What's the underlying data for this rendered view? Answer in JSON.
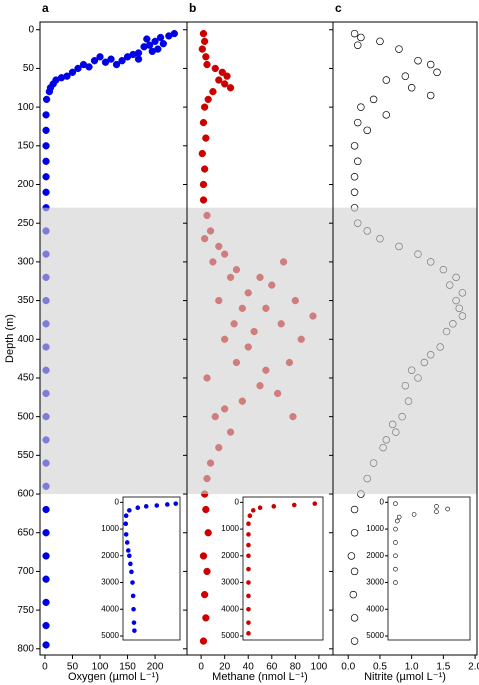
{
  "shaded_depth_range": [
    230,
    600
  ],
  "chart_data": [
    {
      "type": "scatter",
      "panel_label": "a",
      "xlabel": "Oxygen (µmol L⁻¹)",
      "ylabel": "Depth (m)",
      "y_inverted": true,
      "xlim": [
        -9,
        258
      ],
      "xticks": [
        0,
        50,
        100,
        150,
        200
      ],
      "ylim": [
        -10,
        808
      ],
      "yticks": [
        0,
        50,
        100,
        150,
        200,
        250,
        300,
        350,
        400,
        450,
        500,
        550,
        600,
        650,
        700,
        750,
        800
      ],
      "series": [
        {
          "color": "#0000e6",
          "filled": true,
          "x": [
            235,
            225,
            210,
            200,
            190,
            180,
            195,
            170,
            160,
            150,
            140,
            120,
            110,
            100,
            90,
            80,
            70,
            60,
            50,
            40,
            30,
            20,
            15,
            10,
            8,
            215,
            205,
            130,
            185,
            170,
            3,
            2,
            2,
            2,
            2,
            2,
            2,
            2,
            2,
            2,
            2,
            2,
            2,
            2,
            2,
            2,
            2,
            2,
            2,
            2,
            2,
            2,
            2,
            2,
            2,
            2,
            2
          ],
          "y": [
            5,
            8,
            10,
            15,
            20,
            22,
            28,
            30,
            32,
            35,
            40,
            38,
            42,
            35,
            40,
            48,
            45,
            50,
            55,
            60,
            62,
            65,
            70,
            75,
            80,
            18,
            25,
            45,
            12,
            38,
            90,
            110,
            130,
            150,
            170,
            190,
            210,
            230,
            260,
            290,
            320,
            350,
            380,
            410,
            440,
            470,
            500,
            530,
            560,
            590,
            620,
            650,
            680,
            710,
            740,
            770,
            795
          ]
        }
      ],
      "inset": {
        "xlim": [
          -10,
          260
        ],
        "ylim": [
          -200,
          5150
        ],
        "yticks": [
          0,
          1000,
          2000,
          3000,
          4000,
          5000
        ],
        "x": [
          240,
          200,
          150,
          100,
          60,
          20,
          5,
          3,
          5,
          10,
          15,
          20,
          25,
          30,
          35,
          38,
          40,
          42,
          44
        ],
        "y": [
          50,
          80,
          120,
          150,
          200,
          300,
          500,
          800,
          1200,
          1500,
          1800,
          2000,
          2300,
          2600,
          3000,
          3500,
          4000,
          4500,
          4800
        ]
      }
    },
    {
      "type": "scatter",
      "panel_label": "b",
      "xlabel": "Methane (nmol L⁻¹)",
      "y_inverted": true,
      "xlim": [
        -12,
        112
      ],
      "xticks": [
        0,
        20,
        40,
        60,
        80,
        100
      ],
      "ylim": [
        -10,
        808
      ],
      "series": [
        {
          "color": "#cc0000",
          "filled": true,
          "x": [
            2,
            3,
            1,
            4,
            5,
            12,
            18,
            22,
            15,
            20,
            25,
            10,
            6,
            3,
            2,
            4,
            1,
            3,
            2,
            2,
            5,
            8,
            3,
            15,
            20,
            10,
            30,
            25,
            50,
            60,
            40,
            70,
            15,
            35,
            55,
            80,
            95,
            28,
            45,
            68,
            20,
            40,
            85,
            30,
            55,
            75,
            5,
            50,
            65,
            35,
            20,
            78,
            12,
            25,
            15,
            8,
            5,
            3,
            4,
            6,
            2,
            5,
            3,
            4,
            2
          ],
          "y": [
            5,
            15,
            25,
            35,
            45,
            50,
            55,
            60,
            65,
            70,
            75,
            80,
            90,
            100,
            120,
            140,
            160,
            180,
            200,
            220,
            240,
            260,
            270,
            280,
            290,
            300,
            310,
            320,
            320,
            330,
            340,
            300,
            350,
            360,
            360,
            350,
            370,
            380,
            390,
            380,
            400,
            410,
            400,
            430,
            440,
            430,
            450,
            460,
            470,
            480,
            490,
            500,
            500,
            520,
            540,
            560,
            580,
            600,
            620,
            650,
            680,
            700,
            730,
            760,
            790
          ]
        }
      ],
      "inset": {
        "xlim": [
          -5,
          112
        ],
        "ylim": [
          -200,
          5150
        ],
        "yticks": [
          0,
          1000,
          2000,
          3000,
          4000,
          5000
        ],
        "x": [
          100,
          70,
          40,
          20,
          10,
          5,
          3,
          3,
          3,
          3,
          3,
          3,
          3,
          3,
          3,
          3
        ],
        "y": [
          50,
          100,
          150,
          200,
          300,
          500,
          800,
          1200,
          1600,
          2000,
          2500,
          3000,
          3500,
          4000,
          4500,
          4900
        ]
      }
    },
    {
      "type": "scatter",
      "panel_label": "c",
      "xlabel": "Nitrite (µmol L⁻¹)",
      "y_inverted": true,
      "xlim": [
        -0.24,
        2.03
      ],
      "xticks": [
        {
          "value": 0,
          "label": "0.0"
        },
        {
          "value": 0.5,
          "label": "0.5"
        },
        {
          "value": 1,
          "label": "1.0"
        },
        {
          "value": 1.5,
          "label": "1.5"
        },
        {
          "value": 2,
          "label": "2.0"
        }
      ],
      "ylim": [
        -10,
        808
      ],
      "series": [
        {
          "color": "#000000",
          "filled": false,
          "x": [
            0.1,
            0.2,
            0.15,
            0.5,
            0.8,
            1.1,
            1.3,
            1.4,
            0.9,
            0.6,
            1.0,
            1.3,
            0.4,
            0.2,
            0.6,
            0.15,
            0.3,
            0.1,
            0.15,
            0.1,
            0.1,
            0.1,
            0.15,
            0.3,
            0.5,
            0.8,
            1.1,
            1.3,
            1.5,
            1.7,
            1.6,
            1.8,
            1.7,
            1.75,
            1.8,
            1.65,
            1.55,
            1.45,
            1.3,
            1.2,
            1.0,
            1.1,
            0.9,
            0.95,
            0.85,
            0.7,
            0.75,
            0.6,
            0.55,
            0.4,
            0.3,
            0.2,
            0.1,
            0.1,
            0.05,
            0.1,
            0.08,
            0.1,
            0.1
          ],
          "y": [
            5,
            10,
            20,
            15,
            25,
            40,
            45,
            55,
            60,
            65,
            75,
            85,
            90,
            100,
            110,
            120,
            130,
            150,
            170,
            190,
            210,
            230,
            250,
            260,
            270,
            280,
            290,
            300,
            310,
            320,
            330,
            340,
            350,
            360,
            370,
            380,
            390,
            410,
            420,
            430,
            440,
            450,
            460,
            480,
            500,
            510,
            520,
            530,
            540,
            560,
            580,
            600,
            620,
            650,
            680,
            700,
            730,
            760,
            790
          ]
        }
      ],
      "inset": {
        "xlim": [
          -0.1,
          2.1
        ],
        "ylim": [
          -200,
          5150
        ],
        "yticks": [
          0,
          1000,
          2000,
          3000,
          4000,
          5000
        ],
        "x": [
          0.1,
          1.2,
          1.5,
          1.2,
          0.6,
          0.2,
          0.15,
          0.1,
          0.1,
          0.1,
          0.1,
          0.1
        ],
        "y": [
          50,
          150,
          250,
          350,
          450,
          550,
          700,
          1000,
          1500,
          2000,
          2500,
          3000
        ]
      }
    }
  ]
}
